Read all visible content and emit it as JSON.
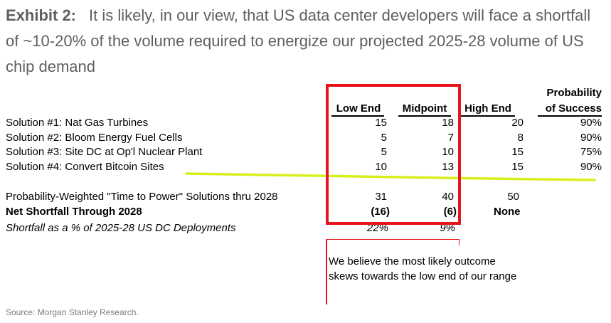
{
  "exhibit": {
    "label": "Exhibit 2:",
    "text": "It is likely, in our view, that US data center developers will face a shortfall of ~10-20% of the volume required to energize our projected 2025-28 volume of US chip demand"
  },
  "table": {
    "headers": {
      "low_end": "Low End",
      "midpoint": "Midpoint",
      "high_end": "High End",
      "prob_line1": "Probability",
      "prob_line2": "of Success"
    },
    "solutions": [
      {
        "label": "Solution #1: Nat Gas Turbines",
        "low": "15",
        "mid": "18",
        "high": "20",
        "prob": "90%"
      },
      {
        "label": "Solution #2: Bloom Energy Fuel Cells",
        "low": "5",
        "mid": "7",
        "high": "8",
        "prob": "90%"
      },
      {
        "label": "Solution #3: Site DC at Op'l Nuclear Plant",
        "low": "5",
        "mid": "10",
        "high": "15",
        "prob": "75%"
      },
      {
        "label": "Solution #4: Convert Bitcoin Sites",
        "low": "10",
        "mid": "13",
        "high": "15",
        "prob": "90%"
      }
    ],
    "weighted": {
      "label": "Probability-Weighted \"Time to Power\" Solutions thru 2028",
      "low": "31",
      "mid": "40",
      "high": "50"
    },
    "shortfall": {
      "label": "Net Shortfall Through 2028",
      "low": "(16)",
      "mid": "(6)",
      "high": "None"
    },
    "pct": {
      "label": "Shortfall as a % of 2025-28 US DC Deployments",
      "low": "22%",
      "mid": "9%"
    }
  },
  "note": "We believe the most likely outcome skews towards the low end of our range",
  "source": "Source: Morgan Stanley Research.",
  "colors": {
    "highlight_box": "#e8141b",
    "marker_line": "#d7ef1c",
    "title_gray": "#5f5f5f"
  }
}
